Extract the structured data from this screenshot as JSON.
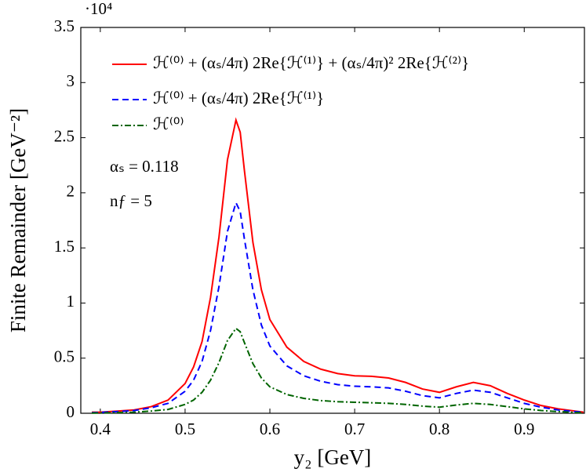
{
  "chart_data": {
    "type": "line",
    "y_multiplier": "·10⁴",
    "xlabel": "y₂ [GeV]",
    "ylabel": "Finite Remainder [GeV⁻²]",
    "annotations": [
      "αₛ = 0.118",
      "nƒ = 5"
    ],
    "x": [
      0.39,
      0.4,
      0.42,
      0.44,
      0.46,
      0.48,
      0.5,
      0.51,
      0.52,
      0.53,
      0.54,
      0.55,
      0.56,
      0.565,
      0.57,
      0.58,
      0.59,
      0.6,
      0.62,
      0.64,
      0.66,
      0.68,
      0.7,
      0.72,
      0.74,
      0.76,
      0.78,
      0.8,
      0.82,
      0.84,
      0.86,
      0.88,
      0.9,
      0.92,
      0.94,
      0.96,
      0.97
    ],
    "series": [
      {
        "name": "ℋ⁽⁰⁾ + (αₛ/4π) 2Re{ℋ⁽¹⁾} + (αₛ/4π)² 2Re{ℋ⁽²⁾}",
        "color": "#ff0000",
        "dash": "solid",
        "values": [
          0.01,
          0.01,
          0.02,
          0.03,
          0.06,
          0.12,
          0.27,
          0.42,
          0.65,
          1.05,
          1.6,
          2.3,
          2.66,
          2.55,
          2.2,
          1.55,
          1.12,
          0.85,
          0.6,
          0.47,
          0.4,
          0.36,
          0.34,
          0.335,
          0.32,
          0.28,
          0.22,
          0.19,
          0.24,
          0.28,
          0.25,
          0.18,
          0.12,
          0.07,
          0.04,
          0.02,
          0.01
        ]
      },
      {
        "name": "ℋ⁽⁰⁾ + (αₛ/4π) 2Re{ℋ⁽¹⁾}",
        "color": "#0000ff",
        "dash": "dashed",
        "values": [
          0.005,
          0.008,
          0.015,
          0.025,
          0.05,
          0.09,
          0.2,
          0.3,
          0.47,
          0.75,
          1.15,
          1.65,
          1.91,
          1.83,
          1.58,
          1.12,
          0.8,
          0.61,
          0.43,
          0.34,
          0.29,
          0.26,
          0.245,
          0.24,
          0.23,
          0.2,
          0.16,
          0.14,
          0.18,
          0.21,
          0.19,
          0.14,
          0.09,
          0.055,
          0.03,
          0.015,
          0.01
        ]
      },
      {
        "name": "ℋ⁽⁰⁾",
        "color": "#006400",
        "dash": "dashdot",
        "values": [
          0.002,
          0.003,
          0.006,
          0.01,
          0.02,
          0.035,
          0.08,
          0.12,
          0.19,
          0.3,
          0.46,
          0.66,
          0.77,
          0.74,
          0.64,
          0.45,
          0.32,
          0.24,
          0.17,
          0.135,
          0.115,
          0.105,
          0.1,
          0.095,
          0.09,
          0.08,
          0.065,
          0.055,
          0.075,
          0.09,
          0.08,
          0.06,
          0.04,
          0.025,
          0.015,
          0.007,
          0.004
        ]
      }
    ],
    "xlim": [
      0.377,
      0.971
    ],
    "xticks": [
      0.4,
      0.5,
      0.6,
      0.7,
      0.8,
      0.9
    ],
    "ylim": [
      0,
      3.5
    ],
    "yticks": [
      0,
      0.5,
      1,
      1.5,
      2,
      2.5,
      3,
      3.5
    ],
    "legend": "upper left"
  }
}
